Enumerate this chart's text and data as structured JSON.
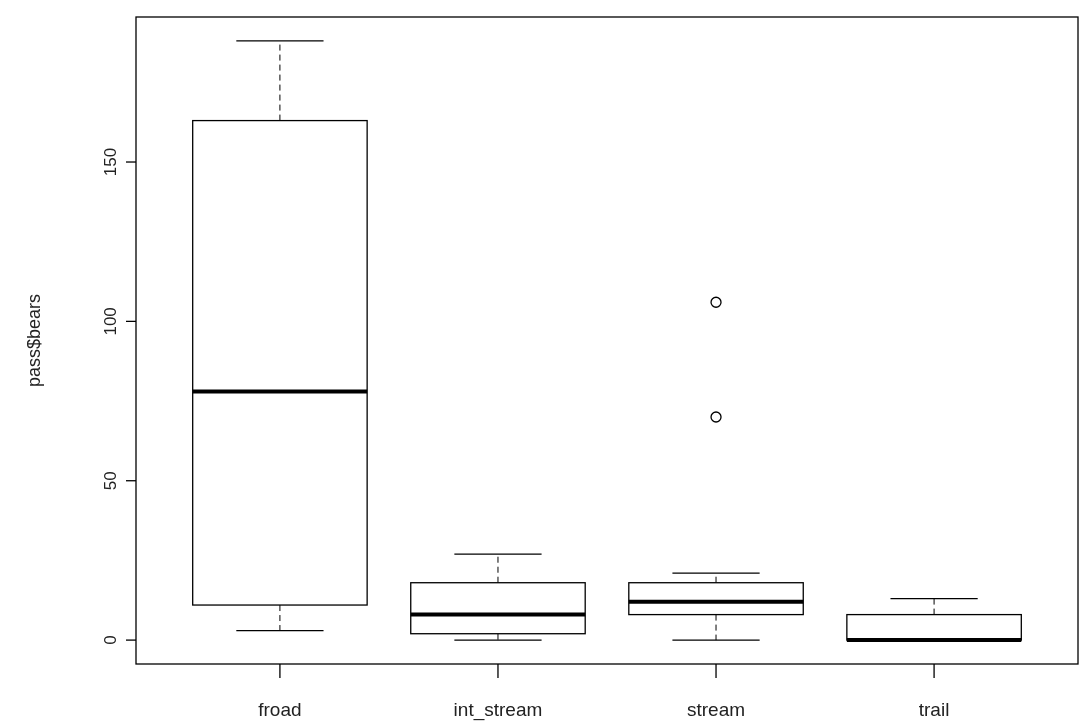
{
  "chart_data": {
    "type": "box",
    "ylabel": "pass$bears",
    "categories": [
      "froad",
      "int_stream",
      "stream",
      "trail"
    ],
    "boxes": [
      {
        "low": 3,
        "q1": 11,
        "median": 78,
        "q3": 163,
        "high": 188
      },
      {
        "low": 0,
        "q1": 2,
        "median": 8,
        "q3": 18,
        "high": 27
      },
      {
        "low": 0,
        "q1": 8,
        "median": 12,
        "q3": 18,
        "high": 21,
        "outliers": [
          70,
          106
        ]
      },
      {
        "low": 0,
        "q1": 0,
        "median": 0,
        "q3": 8,
        "high": 13
      }
    ],
    "ylim": [
      -7.5,
      195.5
    ],
    "yticks": [
      0,
      50,
      100,
      150
    ],
    "color": "#000000",
    "grid": false
  }
}
